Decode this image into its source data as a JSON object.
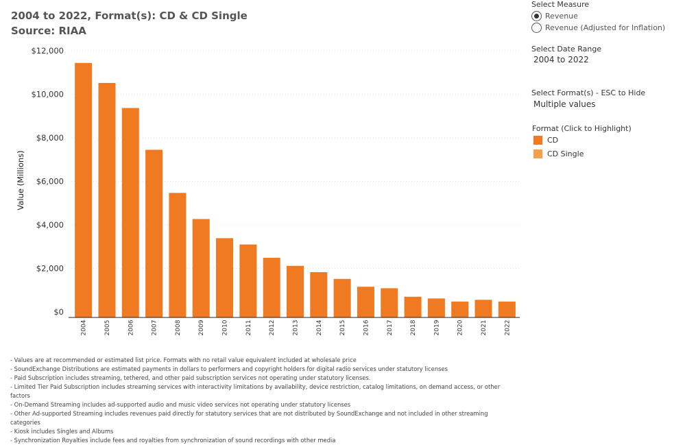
{
  "title": {
    "line1": "2004 to 2022, Format(s): CD & CD Single",
    "line2": "Source: RIAA"
  },
  "controls": {
    "measure_label": "Select Measure",
    "measure_options": [
      {
        "label": "Revenue",
        "selected": true
      },
      {
        "label": "Revenue (Adjusted for Inflation)",
        "selected": false
      }
    ],
    "date_range_label": "Select Date Range",
    "date_range_value": "2004 to 2022",
    "format_label": "Select Format(s) - ESC to Hide",
    "format_value": "Multiple values",
    "legend_label": "Format (Click to Highlight)",
    "legend_items": [
      {
        "label": "CD",
        "color": "#f07a22"
      },
      {
        "label": "CD Single",
        "color": "#f5a04a"
      }
    ]
  },
  "chart_data": {
    "type": "bar",
    "title": "",
    "xlabel": "",
    "ylabel": "Value (Millions)",
    "ylim": [
      0,
      12000
    ],
    "y_ticks": [
      0,
      2000,
      4000,
      6000,
      8000,
      10000,
      12000
    ],
    "y_tick_labels": [
      "$0",
      "$2,000",
      "$4,000",
      "$6,000",
      "$8,000",
      "$10,000",
      "$12,000"
    ],
    "grid": true,
    "categories": [
      "2004",
      "2005",
      "2006",
      "2007",
      "2008",
      "2009",
      "2010",
      "2011",
      "2012",
      "2013",
      "2014",
      "2015",
      "2016",
      "2017",
      "2018",
      "2019",
      "2020",
      "2021",
      "2022"
    ],
    "series": [
      {
        "name": "CD",
        "color": "#f07a22",
        "values": [
          11440,
          10520,
          9370,
          7450,
          5470,
          4270,
          3390,
          3100,
          2490,
          2120,
          1830,
          1520,
          1160,
          1090,
          700,
          620,
          480,
          560,
          480
        ]
      }
    ]
  },
  "notes": [
    "- Values are at recommended or estimated list price. Formats with no retail value equivalent included at wholesale price",
    "- SoundExchange Distributions are estimated payments in dollars to performers and copyright holders for digital radio services under statutory licenses",
    "- Paid Subscription includes streaming, tethered, and other paid subscription services not operating under statutory licenses.",
    "- Limited Tier Paid Subscription includes streaming services with interactivity limitations by availability, device restriction, catalog limitations, on demand access, or other factors",
    "- On-Demand Streaming includes ad-supported audio and music video services not operating under statutory licenses",
    "- Other Ad-supported Streaming includes revenues paid directly for statutory services that are not distributed by SoundExchange and not included in other streaming categories",
    "- Kiosk includes Singles and Albums",
    "- Synchronization Royalties include fees and royalties from synchronization of sound recordings with other media"
  ]
}
